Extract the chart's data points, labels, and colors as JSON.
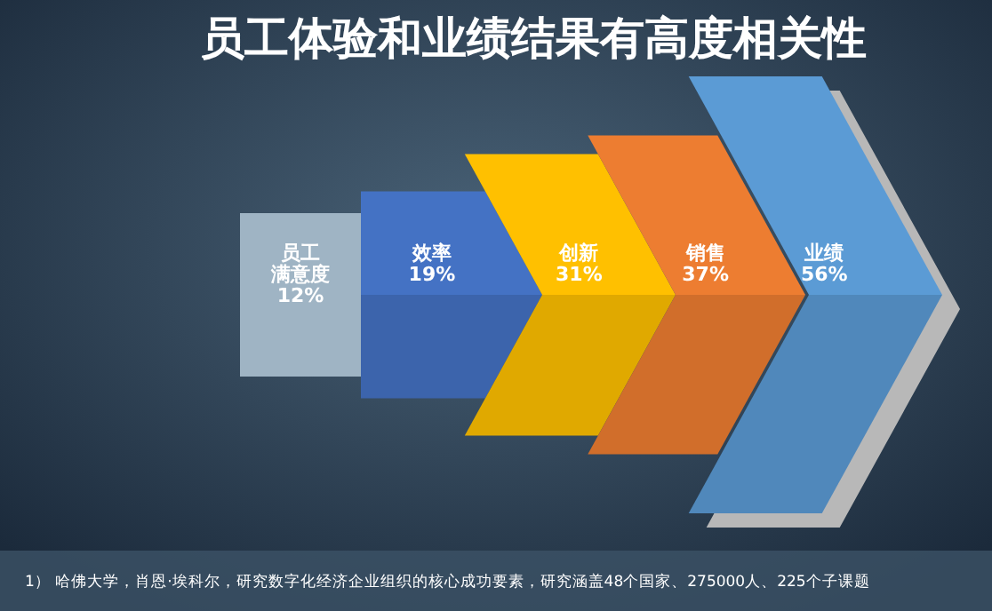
{
  "chart_data": {
    "type": "other",
    "title": "员工体验和业绩结果有高度相关性",
    "categories": [
      "员工满意度",
      "效率",
      "创新",
      "销售",
      "业绩"
    ],
    "values": [
      12,
      19,
      31,
      37,
      56
    ],
    "value_labels": [
      "12%",
      "19%",
      "31%",
      "37%",
      "56%"
    ],
    "colors": [
      "#9fb4c4",
      "#4472c4",
      "#ffc000",
      "#ed7d31",
      "#5b9bd5"
    ],
    "annotations": [
      "1）  哈佛大学，肖恩·埃科尔，研究数字化经济企业组织的核心成功要素，研究涵盖48个国家、275000人、225个子课题"
    ]
  }
}
